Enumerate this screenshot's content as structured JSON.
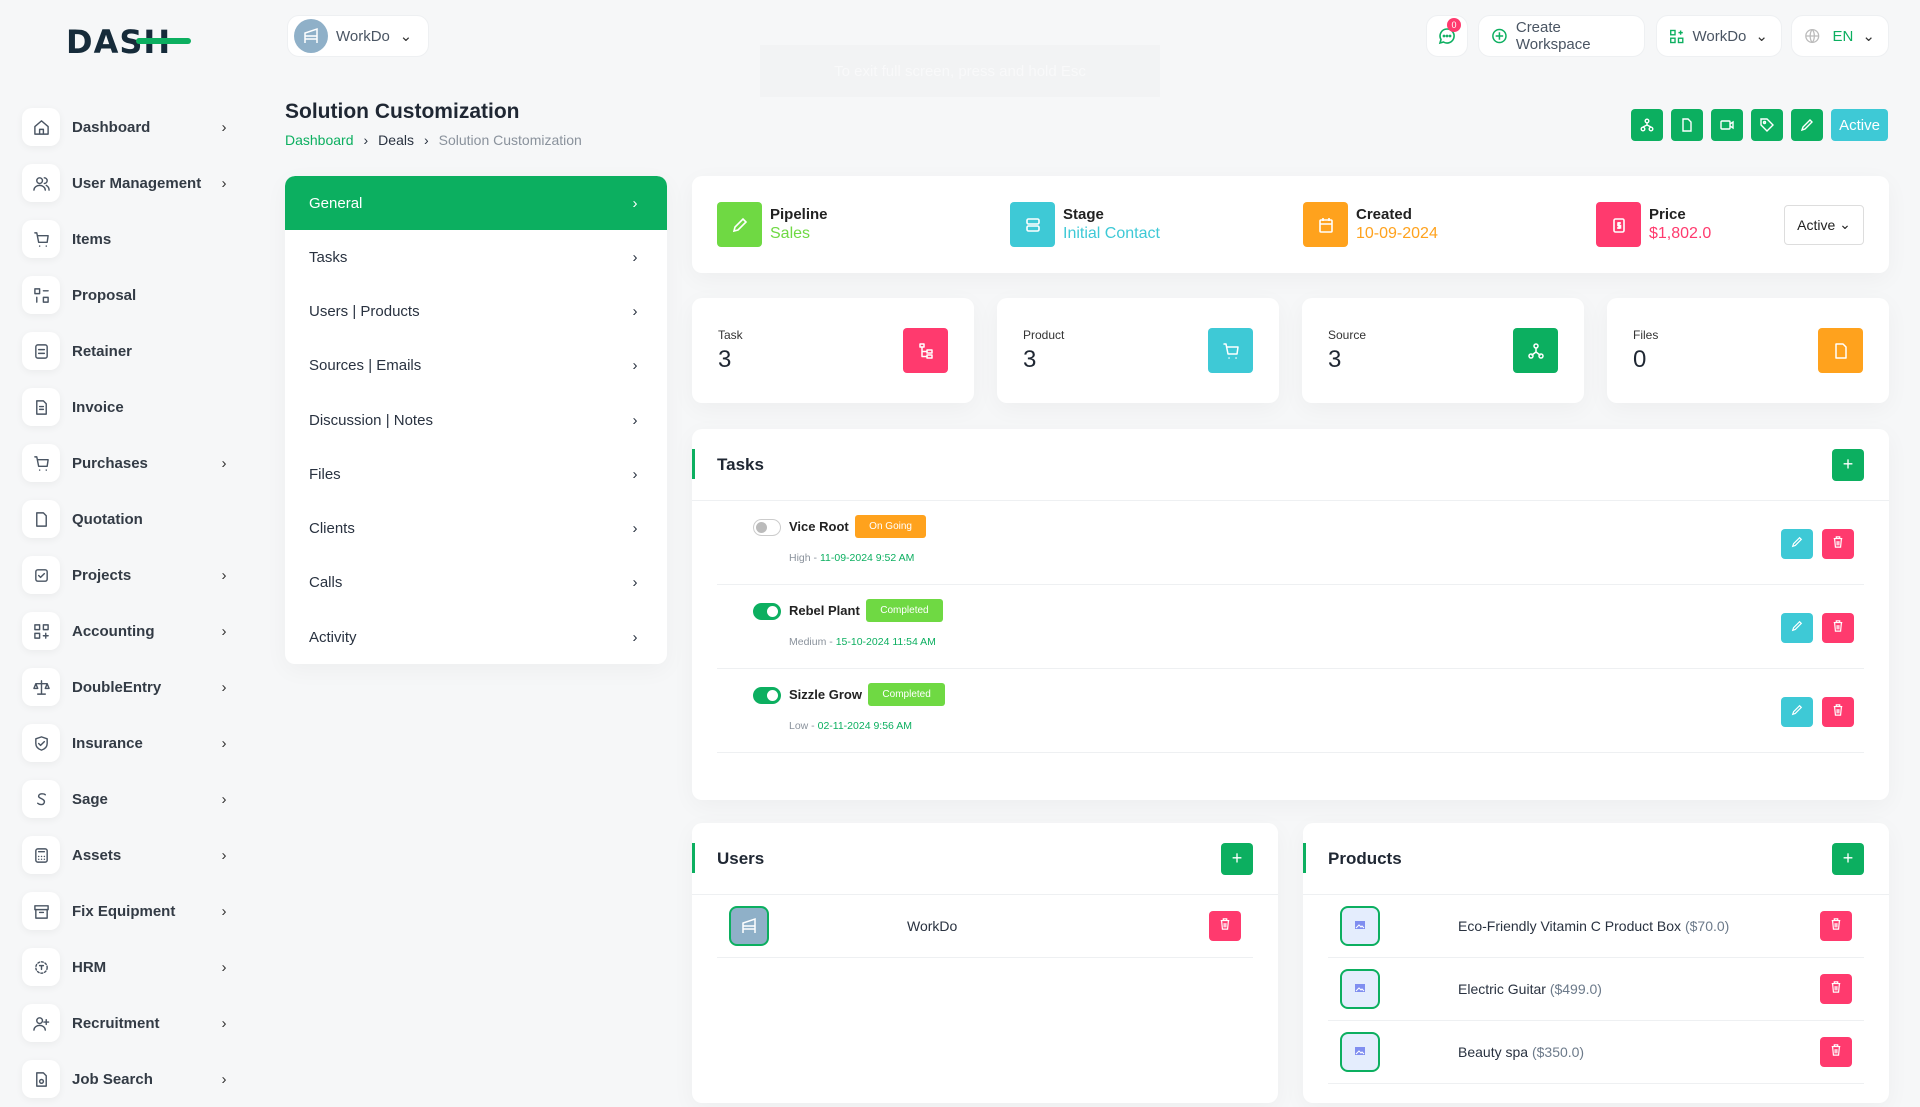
{
  "brand": {
    "logo_text": "DASH",
    "accent": "#0caf60"
  },
  "header": {
    "workspace": "WorkDo",
    "notifications_count": "0",
    "create_workspace": "Create Workspace",
    "workspace_switch": "WorkDo",
    "language": "EN",
    "fullscreen_hint": "To exit full screen, press and hold Esc"
  },
  "sidebar": {
    "items": [
      {
        "label": "Dashboard",
        "icon": "home-icon",
        "chevron": true
      },
      {
        "label": "User Management",
        "icon": "users-icon",
        "chevron": true
      },
      {
        "label": "Items",
        "icon": "cart-icon",
        "chevron": false
      },
      {
        "label": "Proposal",
        "icon": "proposal-icon",
        "chevron": false
      },
      {
        "label": "Retainer",
        "icon": "retainer-icon",
        "chevron": false
      },
      {
        "label": "Invoice",
        "icon": "invoice-icon",
        "chevron": false
      },
      {
        "label": "Purchases",
        "icon": "cart-icon",
        "chevron": true
      },
      {
        "label": "Quotation",
        "icon": "file-icon",
        "chevron": false
      },
      {
        "label": "Projects",
        "icon": "checkbox-icon",
        "chevron": true
      },
      {
        "label": "Accounting",
        "icon": "apps-icon",
        "chevron": true
      },
      {
        "label": "DoubleEntry",
        "icon": "scale-icon",
        "chevron": true
      },
      {
        "label": "Insurance",
        "icon": "shield-icon",
        "chevron": true
      },
      {
        "label": "Sage",
        "icon": "sage-icon",
        "chevron": true
      },
      {
        "label": "Assets",
        "icon": "calculator-icon",
        "chevron": true
      },
      {
        "label": "Fix Equipment",
        "icon": "archive-icon",
        "chevron": true
      },
      {
        "label": "HRM",
        "icon": "hrm-icon",
        "chevron": true
      },
      {
        "label": "Recruitment",
        "icon": "user-plus-icon",
        "chevron": true
      },
      {
        "label": "Job Search",
        "icon": "file-search-icon",
        "chevron": true
      }
    ]
  },
  "page": {
    "title": "Solution Customization",
    "breadcrumb": [
      "Dashboard",
      "Deals",
      "Solution Customization"
    ],
    "status_button": "Active"
  },
  "menu": {
    "items": [
      "General",
      "Tasks",
      "Users | Products",
      "Sources | Emails",
      "Discussion | Notes",
      "Files",
      "Clients",
      "Calls",
      "Activity"
    ],
    "active": "General"
  },
  "info": {
    "pipeline": {
      "label": "Pipeline",
      "value": "Sales",
      "color": "#6fd943"
    },
    "stage": {
      "label": "Stage",
      "value": "Initial Contact",
      "color": "#3ec9d6"
    },
    "created": {
      "label": "Created",
      "value": "10-09-2024",
      "color": "#ffa21d"
    },
    "price": {
      "label": "Price",
      "value": "$1,802.0",
      "color": "#ff3a6e"
    },
    "status_select": "Active"
  },
  "stats": [
    {
      "label": "Task",
      "value": "3",
      "color": "#ff3a6e",
      "icon": "task-icon"
    },
    {
      "label": "Product",
      "value": "3",
      "color": "#3ec9d6",
      "icon": "cart-icon"
    },
    {
      "label": "Source",
      "value": "3",
      "color": "#0caf60",
      "icon": "source-icon"
    },
    {
      "label": "Files",
      "value": "0",
      "color": "#ffa21d",
      "icon": "file-icon"
    }
  ],
  "tasks": {
    "title": "Tasks",
    "rows": [
      {
        "name": "Vice Root",
        "status": "On Going",
        "status_color": "#ffa21d",
        "done": false,
        "priority": "High",
        "date": "11-09-2024 9:52 AM"
      },
      {
        "name": "Rebel Plant",
        "status": "Completed",
        "status_color": "#6fd943",
        "done": true,
        "priority": "Medium",
        "date": "15-10-2024 11:54 AM"
      },
      {
        "name": "Sizzle Grow",
        "status": "Completed",
        "status_color": "#6fd943",
        "done": true,
        "priority": "Low",
        "date": "02-11-2024 9:56 AM"
      }
    ]
  },
  "users": {
    "title": "Users",
    "rows": [
      {
        "name": "WorkDo"
      }
    ]
  },
  "products": {
    "title": "Products",
    "rows": [
      {
        "name": "Eco-Friendly Vitamin C Product Box",
        "price": "($70.0)"
      },
      {
        "name": "Electric Guitar",
        "price": "($499.0)"
      },
      {
        "name": "Beauty spa",
        "price": "($350.0)"
      }
    ]
  }
}
